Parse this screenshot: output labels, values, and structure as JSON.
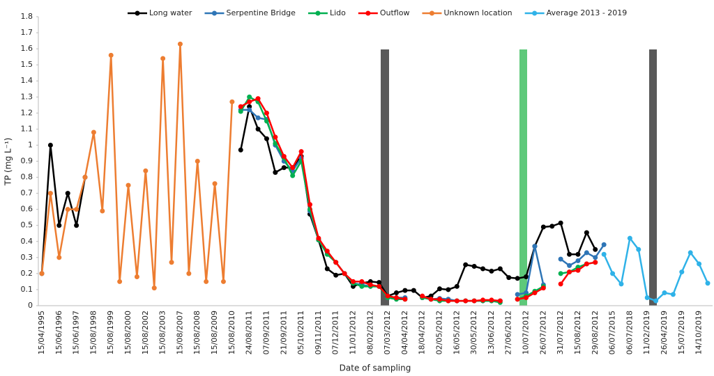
{
  "chart_data": {
    "type": "line",
    "y_label": "TP (mg L⁻¹)",
    "x_label": "Date of sampling",
    "categories": [
      "15/04/1995",
      null,
      "15/06/1996",
      null,
      "15/06/1997",
      null,
      "15/08/1998",
      null,
      "15/08/1999",
      null,
      "15/08/2000",
      null,
      "15/08/2002",
      null,
      "15/08/2003",
      null,
      "15/08/2007",
      null,
      "15/08/2008",
      null,
      "15/08/2009",
      null,
      "15/08/2010",
      null,
      "24/08/2011",
      null,
      "07/09/2011",
      null,
      "21/09/2011",
      null,
      "05/10/2011",
      null,
      "09/11/2011",
      null,
      "07/12/2011",
      null,
      "11/01/2012",
      null,
      "08/02/2012",
      null,
      "07/03/2012",
      null,
      "04/04/2012",
      null,
      "18/04/2012",
      null,
      "02/05/2012",
      null,
      "16/05/2012",
      null,
      "30/05/2012",
      null,
      "13/06/2012",
      null,
      "27/06/2012",
      null,
      "10/07/2012",
      null,
      "26/07/2012",
      null,
      "31/07/2012",
      null,
      "15/08/2012",
      null,
      "29/08/2012",
      null,
      "06/07/2015",
      null,
      "06/07/2018",
      null,
      "11/02/2019",
      null,
      "26/04/2019",
      null,
      "15/07/2019",
      null,
      "14/10/2019",
      null
    ],
    "series": [
      {
        "name": "Long water",
        "color": "#000000",
        "values": [
          0.2,
          1.0,
          0.5,
          0.7,
          0.5,
          0.8,
          null,
          null,
          null,
          null,
          null,
          null,
          null,
          null,
          null,
          null,
          null,
          null,
          null,
          null,
          null,
          null,
          null,
          0.97,
          1.24,
          1.1,
          1.04,
          0.83,
          0.86,
          0.86,
          0.93,
          0.57,
          0.41,
          0.23,
          0.19,
          0.2,
          0.12,
          0.14,
          0.15,
          0.145,
          0.06,
          0.08,
          0.095,
          0.095,
          0.05,
          0.06,
          0.105,
          0.1,
          0.12,
          0.255,
          0.245,
          0.23,
          0.215,
          0.23,
          0.175,
          0.17,
          0.18,
          0.37,
          0.49,
          0.495,
          0.515,
          0.32,
          0.32,
          0.455,
          0.35,
          null,
          null,
          null,
          null,
          null,
          null,
          null,
          null,
          null,
          null,
          null,
          null,
          null
        ]
      },
      {
        "name": "Serpentine Bridge",
        "color": "#2e75b6",
        "values": [
          null,
          null,
          null,
          null,
          null,
          null,
          null,
          null,
          null,
          null,
          null,
          null,
          null,
          null,
          null,
          null,
          null,
          null,
          null,
          null,
          null,
          null,
          null,
          1.22,
          1.22,
          1.17,
          1.16,
          1.0,
          0.9,
          0.84,
          0.92,
          0.59,
          0.41,
          0.33,
          0.27,
          0.2,
          0.14,
          0.13,
          0.12,
          0.12,
          0.05,
          0.05,
          0.05,
          null,
          0.05,
          0.04,
          0.045,
          0.04,
          0.03,
          0.03,
          0.03,
          0.03,
          0.03,
          0.03,
          null,
          0.07,
          0.08,
          0.37,
          0.13,
          null,
          0.29,
          0.25,
          0.28,
          0.33,
          0.3,
          0.38,
          null,
          null,
          null,
          null,
          null,
          null,
          null,
          null,
          null,
          null,
          null,
          null
        ]
      },
      {
        "name": "Lido",
        "color": "#00b050",
        "values": [
          null,
          null,
          null,
          null,
          null,
          null,
          null,
          null,
          null,
          null,
          null,
          null,
          null,
          null,
          null,
          null,
          null,
          null,
          null,
          null,
          null,
          null,
          null,
          1.21,
          1.3,
          1.27,
          1.15,
          1.01,
          0.92,
          0.81,
          0.9,
          0.6,
          0.41,
          0.32,
          0.27,
          0.2,
          0.14,
          0.12,
          0.12,
          0.12,
          0.05,
          0.04,
          0.04,
          null,
          0.05,
          0.04,
          0.03,
          0.03,
          0.03,
          0.03,
          0.03,
          0.03,
          0.03,
          0.02,
          null,
          0.04,
          0.06,
          0.09,
          0.12,
          null,
          0.2,
          0.21,
          0.24,
          0.26,
          0.27,
          null,
          null,
          null,
          null,
          null,
          null,
          null,
          null,
          null,
          null,
          null,
          null,
          null
        ]
      },
      {
        "name": "Outflow",
        "color": "#ff0000",
        "values": [
          null,
          null,
          null,
          null,
          null,
          null,
          null,
          null,
          null,
          null,
          null,
          null,
          null,
          null,
          null,
          null,
          null,
          null,
          null,
          null,
          null,
          null,
          null,
          1.24,
          1.27,
          1.29,
          1.2,
          1.05,
          0.93,
          0.86,
          0.96,
          0.63,
          0.42,
          0.34,
          0.27,
          0.2,
          0.15,
          0.15,
          0.13,
          0.12,
          0.06,
          0.05,
          0.04,
          null,
          0.06,
          0.04,
          0.04,
          0.03,
          0.03,
          0.03,
          0.03,
          0.035,
          0.035,
          0.03,
          null,
          0.04,
          0.05,
          0.08,
          0.11,
          null,
          0.135,
          0.21,
          0.22,
          0.26,
          0.27,
          null,
          null,
          null,
          null,
          null,
          null,
          null,
          null,
          null,
          null,
          null,
          null,
          null
        ]
      },
      {
        "name": "Unknown location",
        "color": "#ed7d31",
        "values": [
          0.2,
          0.7,
          0.3,
          0.6,
          0.6,
          0.8,
          1.08,
          0.59,
          1.56,
          0.15,
          0.75,
          0.18,
          0.84,
          0.11,
          1.54,
          0.27,
          1.63,
          0.2,
          0.9,
          0.15,
          0.76,
          0.15,
          1.27,
          null,
          null,
          null,
          null,
          null,
          null,
          null,
          null,
          null,
          null,
          null,
          null,
          null,
          null,
          null,
          null,
          null,
          null,
          null,
          null,
          null,
          null,
          null,
          null,
          null,
          null,
          null,
          null,
          null,
          null,
          null,
          null,
          null,
          null,
          null,
          null,
          null,
          null,
          null,
          null,
          null,
          null,
          null,
          null,
          null,
          null,
          null,
          null,
          null,
          null,
          null,
          null,
          null,
          null,
          null
        ]
      },
      {
        "name": "Average 2013 - 2019",
        "color": "#2fb2e8",
        "values": [
          null,
          null,
          null,
          null,
          null,
          null,
          null,
          null,
          null,
          null,
          null,
          null,
          null,
          null,
          null,
          null,
          null,
          null,
          null,
          null,
          null,
          null,
          null,
          null,
          null,
          null,
          null,
          null,
          null,
          null,
          null,
          null,
          null,
          null,
          null,
          null,
          null,
          null,
          null,
          null,
          null,
          null,
          null,
          null,
          null,
          null,
          null,
          null,
          null,
          null,
          null,
          null,
          null,
          null,
          null,
          null,
          null,
          null,
          null,
          null,
          null,
          null,
          null,
          null,
          null,
          0.32,
          0.2,
          0.135,
          0.42,
          0.35,
          0.05,
          0.03,
          0.08,
          0.07,
          0.21,
          0.33,
          0.26,
          0.14
        ]
      }
    ],
    "ylim": [
      0,
      1.8
    ],
    "yticks": [
      0,
      0.1,
      0.2,
      0.3,
      0.4,
      0.5,
      0.6,
      0.7,
      0.8,
      0.9,
      1,
      1.1,
      1.2,
      1.3,
      1.4,
      1.5,
      1.6,
      1.7,
      1.8
    ],
    "grid": false,
    "legend": "top"
  }
}
